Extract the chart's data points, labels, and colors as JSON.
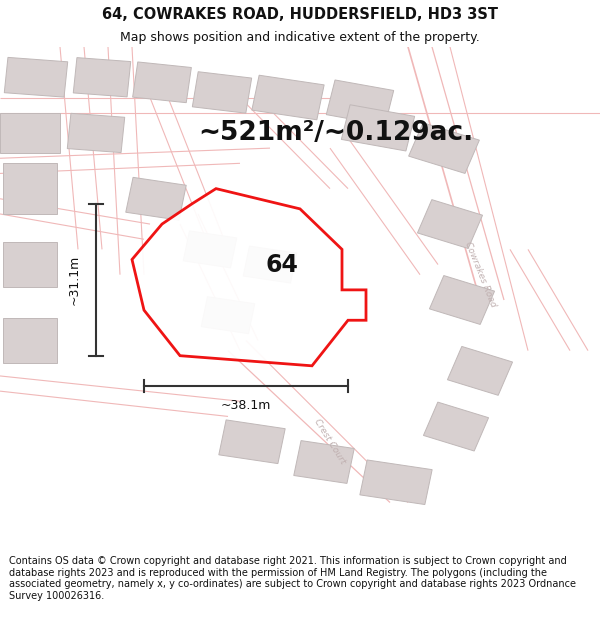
{
  "title": "64, COWRAKES ROAD, HUDDERSFIELD, HD3 3ST",
  "subtitle": "Map shows position and indicative extent of the property.",
  "area_text": "~521m²/~0.129ac.",
  "label_64": "64",
  "dim_height": "~31.1m",
  "dim_width": "~38.1m",
  "footer": "Contains OS data © Crown copyright and database right 2021. This information is subject to Crown copyright and database rights 2023 and is reproduced with the permission of HM Land Registry. The polygons (including the associated geometry, namely x, y co-ordinates) are subject to Crown copyright and database rights 2023 Ordnance Survey 100026316.",
  "bg_color": "#ffffff",
  "map_bg": "#faf8f8",
  "road_color": "#f0b8b8",
  "road_color2": "#e8a8a8",
  "building_fill": "#d8d0d0",
  "building_edge": "#c0b8b8",
  "plot_color": "#ee0000",
  "dim_color": "#333333",
  "text_color": "#111111",
  "road_label_color": "#c0b0b0",
  "title_fontsize": 10.5,
  "subtitle_fontsize": 9,
  "area_fontsize": 19,
  "label_fontsize": 17,
  "footer_fontsize": 7.0
}
